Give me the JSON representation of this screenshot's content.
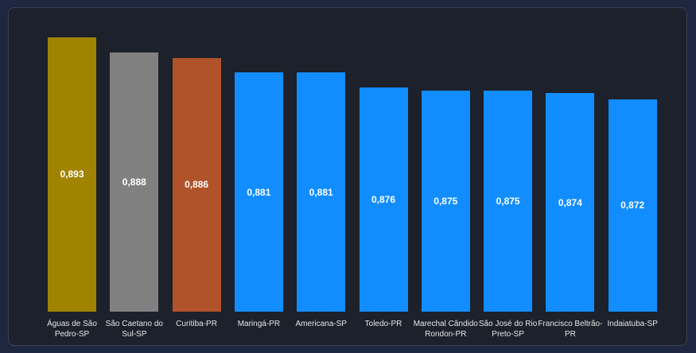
{
  "chart_data": {
    "type": "bar",
    "categories": [
      "Águas de São Pedro-SP",
      "São Caetano do Sul-SP",
      "Curitiba-PR",
      "Maringá-PR",
      "Americana-SP",
      "Toledo-PR",
      "Marechal Cândido Rondon-PR",
      "São José do Rio Preto-SP",
      "Francisco Beltrão-PR",
      "Indaiatuba-SP"
    ],
    "values": [
      0.893,
      0.888,
      0.886,
      0.881,
      0.881,
      0.876,
      0.875,
      0.875,
      0.874,
      0.872
    ],
    "value_labels": [
      "0,893",
      "0,888",
      "0,886",
      "0,881",
      "0,881",
      "0,876",
      "0,875",
      "0,875",
      "0,874",
      "0,872"
    ],
    "colors": [
      "#a08400",
      "#808080",
      "#b0522a",
      "#118dff",
      "#118dff",
      "#118dff",
      "#118dff",
      "#118dff",
      "#118dff",
      "#118dff"
    ],
    "ylim": [
      0.8,
      0.9
    ]
  }
}
